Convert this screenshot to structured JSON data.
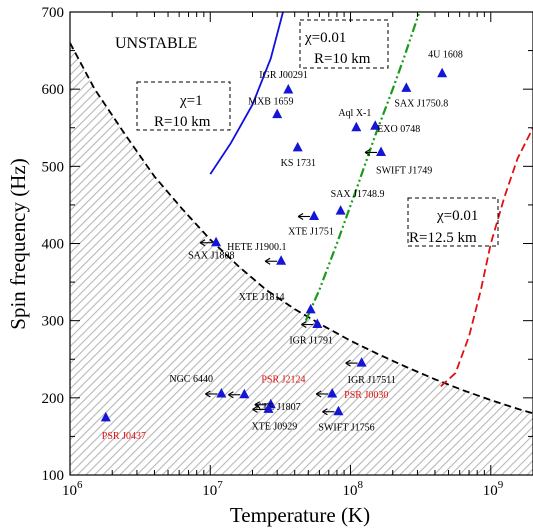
{
  "chart_data": {
    "type": "scatter",
    "xlabel": "Temperature (K)",
    "ylabel": "Spin frequency (Hz)",
    "xscale": "log",
    "xlim": [
      1000000,
      2000000000
    ],
    "ylim": [
      100,
      700
    ],
    "x_ticks": [
      {
        "value": 1000000,
        "label": "10",
        "exp": "6"
      },
      {
        "value": 10000000,
        "label": "10",
        "exp": "7"
      },
      {
        "value": 100000000,
        "label": "10",
        "exp": "8"
      },
      {
        "value": 1000000000,
        "label": "10",
        "exp": "9"
      }
    ],
    "y_ticks": [
      100,
      200,
      300,
      400,
      500,
      600,
      700
    ],
    "region_label": "UNSTABLE",
    "boxes": [
      {
        "id": "box1",
        "line1": "χ=1",
        "line2": "R=10 km"
      },
      {
        "id": "box2",
        "line1": "χ=0.01",
        "line2": "R=10 km"
      },
      {
        "id": "box3",
        "line1": "χ=0.01",
        "line2": "R=12.5 km"
      }
    ],
    "colors": {
      "marker": "#1515d6",
      "blue_curve": "#1010e0",
      "green_curve": "#1a9a1a",
      "red_curve": "#e01010",
      "msp_label": "#e01010",
      "hatch": "#b8b8b8"
    },
    "curves": {
      "black_dashed": [
        [
          1000000,
          660
        ],
        [
          1500000,
          600
        ],
        [
          2500000,
          540
        ],
        [
          4000000,
          487
        ],
        [
          6300000,
          445
        ],
        [
          10000000,
          405
        ],
        [
          16000000,
          370
        ],
        [
          25000000,
          340
        ],
        [
          40000000,
          315
        ],
        [
          63000000,
          294
        ],
        [
          100000000,
          274
        ],
        [
          160000000,
          256
        ],
        [
          250000000,
          240
        ],
        [
          400000000,
          224
        ],
        [
          630000000,
          210
        ],
        [
          1000000000,
          197
        ],
        [
          1600000000,
          185
        ],
        [
          2000000000,
          180
        ]
      ],
      "blue_solid": [
        [
          10000000,
          490
        ],
        [
          14000000,
          530
        ],
        [
          20000000,
          580
        ],
        [
          27000000,
          640
        ],
        [
          33000000,
          700
        ]
      ],
      "green_dashdot": [
        [
          48000000,
          300
        ],
        [
          60000000,
          340
        ],
        [
          80000000,
          400
        ],
        [
          110000000,
          470
        ],
        [
          150000000,
          540
        ],
        [
          200000000,
          600
        ],
        [
          240000000,
          640
        ],
        [
          310000000,
          700
        ]
      ],
      "red_dashed": [
        [
          440000000,
          215
        ],
        [
          560000000,
          232
        ],
        [
          700000000,
          280
        ],
        [
          850000000,
          340
        ],
        [
          1000000000,
          400
        ],
        [
          1250000000,
          460
        ],
        [
          1550000000,
          510
        ],
        [
          2000000000,
          550
        ]
      ]
    },
    "points": [
      {
        "name": "4U 1608",
        "x": 450000000,
        "y": 620,
        "marker": "triangle",
        "label_color": "black"
      },
      {
        "name": "SAX J1750.8",
        "x": 250000000,
        "y": 601,
        "marker": "triangle",
        "label_color": "black"
      },
      {
        "name": "IGR J00291",
        "x": 36000000,
        "y": 599,
        "marker": "triangle",
        "label_color": "black"
      },
      {
        "name": "MXB 1659",
        "x": 30000000,
        "y": 567,
        "marker": "triangle",
        "label_color": "black"
      },
      {
        "name": "Aql X-1",
        "x": 110000000,
        "y": 550,
        "marker": "triangle",
        "label_color": "black"
      },
      {
        "name": "EXO 0748",
        "x": 150000000,
        "y": 552,
        "marker": "triangle",
        "label_color": "black"
      },
      {
        "name": "KS 1731",
        "x": 42000000,
        "y": 524,
        "marker": "triangle",
        "label_color": "black"
      },
      {
        "name": "SWIFT J1749",
        "x": 165000000,
        "y": 518,
        "marker": "arrow_triangle",
        "label_color": "black"
      },
      {
        "name": "SAX J1748.9",
        "x": 85000000,
        "y": 442,
        "marker": "triangle",
        "label_color": "black"
      },
      {
        "name": "XTE J1751",
        "x": 55000000,
        "y": 435,
        "marker": "arrow_triangle",
        "label_color": "black"
      },
      {
        "name": "SAX J1808",
        "x": 11000000,
        "y": 401,
        "marker": "arrow_triangle",
        "label_color": "black"
      },
      {
        "name": "HETE J1900.1",
        "x": 32000000,
        "y": 377,
        "marker": "arrow_triangle",
        "label_color": "black"
      },
      {
        "name": "XTE J1814",
        "x": 52000000,
        "y": 314,
        "marker": "triangle",
        "label_color": "black"
      },
      {
        "name": "IGR J1791",
        "x": 58000000,
        "y": 295,
        "marker": "arrow_triangle",
        "label_color": "black"
      },
      {
        "name": "IGR J17511",
        "x": 120000000,
        "y": 245,
        "marker": "arrow_triangle",
        "label_color": "black"
      },
      {
        "name": "NGC 6440",
        "x": 12000000,
        "y": 205,
        "marker": "arrow_triangle",
        "label_color": "black"
      },
      {
        "name": "PSR J2124",
        "x": 17500000,
        "y": 204,
        "marker": "arrow_triangle",
        "label_color": "red"
      },
      {
        "name": "XTE J1807",
        "x": 27000000,
        "y": 191,
        "marker": "arrow_triangle",
        "label_color": "black"
      },
      {
        "name": "XTE J0929",
        "x": 26000000,
        "y": 185,
        "marker": "arrow_triangle",
        "label_color": "black"
      },
      {
        "name": "PSR J0030",
        "x": 74000000,
        "y": 205,
        "marker": "arrow_triangle",
        "label_color": "red"
      },
      {
        "name": "SWIFT J1756",
        "x": 82000000,
        "y": 182,
        "marker": "arrow_triangle",
        "label_color": "black"
      },
      {
        "name": "PSR J0437",
        "x": 1800000,
        "y": 174,
        "marker": "triangle",
        "label_color": "red"
      }
    ]
  }
}
